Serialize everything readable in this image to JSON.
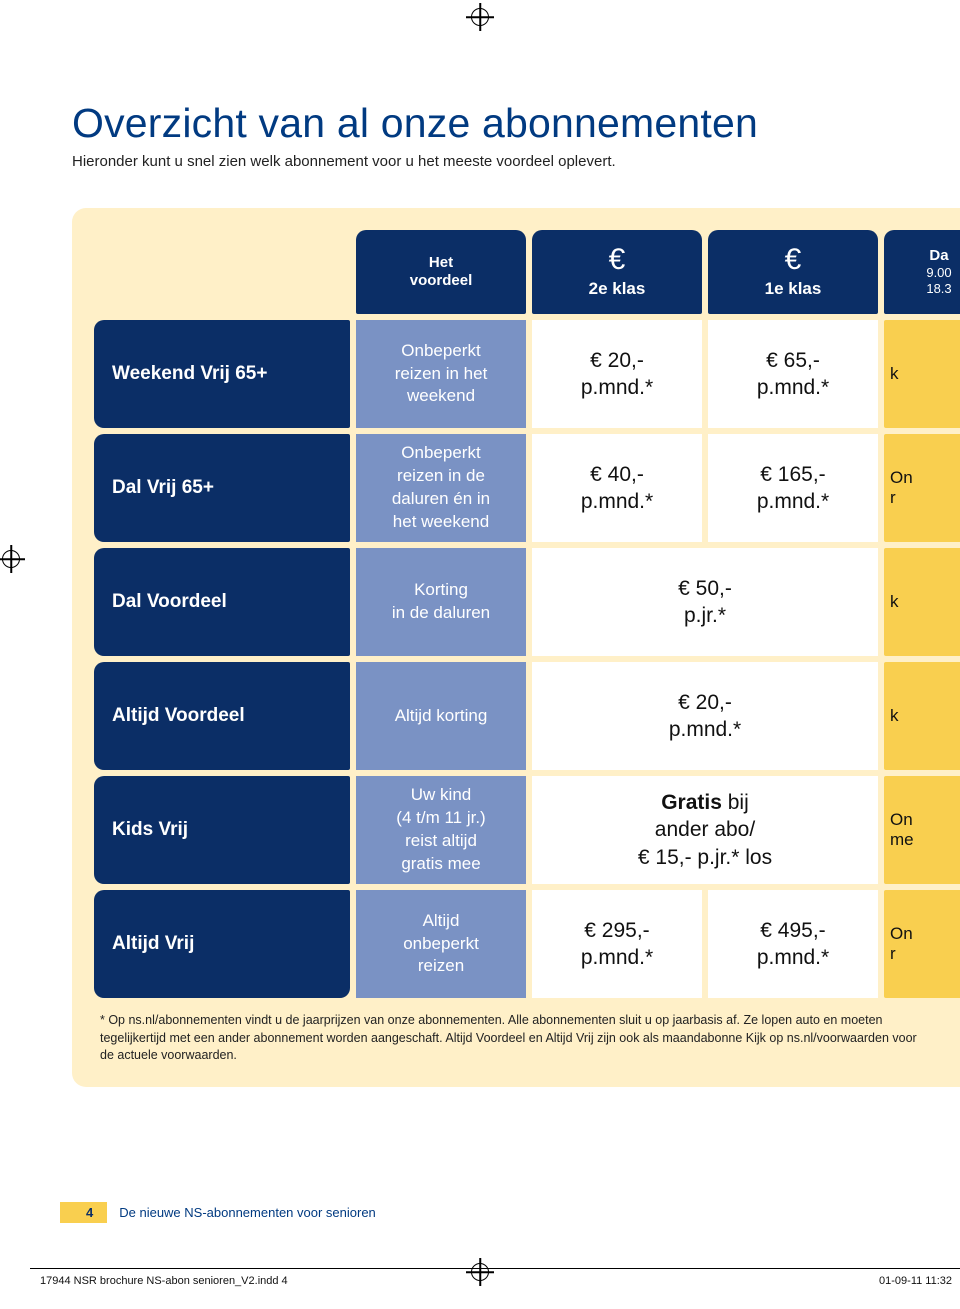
{
  "colors": {
    "heading": "#013a81",
    "navy": "#0b2e66",
    "blue_light": "#7a92c4",
    "yellow_bg": "#fff0c8",
    "yellow_edge": "#f9cf4f",
    "text": "#222222",
    "white": "#ffffff"
  },
  "title": "Overzicht van al onze abonnementen",
  "subtitle": "Hieronder kunt u snel zien welk abonnement voor u het meeste voordeel oplevert.",
  "header": {
    "col1": "Het\nvoordeel",
    "col2_euro": "€",
    "col2_sub": "2e klas",
    "col3_euro": "€",
    "col3_sub": "1e klas",
    "col4_top": "Da",
    "col4_sub": "9.00\n18.3"
  },
  "rows": [
    {
      "name": "Weekend Vrij 65+",
      "benefit": "Onbeperkt\nreizen in het\nweekend",
      "c2": "€ 20,-\np.mnd.*",
      "c3": "€ 65,-\np.mnd.*",
      "edge": "k"
    },
    {
      "name": "Dal Vrij 65+",
      "benefit": "Onbeperkt\nreizen in de\ndaluren én in\nhet weekend",
      "c2": "€ 40,-\np.mnd.*",
      "c3": "€ 165,-\np.mnd.*",
      "edge": "On\nr"
    },
    {
      "name": "Dal Voordeel",
      "benefit": "Korting\nin de daluren",
      "merged": "€ 50,-\np.jr.*",
      "edge": "k"
    },
    {
      "name": "Altijd Voordeel",
      "benefit": "Altijd korting",
      "merged": "€ 20,-\np.mnd.*",
      "edge": "k"
    },
    {
      "name": "Kids Vrij",
      "benefit": "Uw kind\n(4 t/m 11 jr.)\nreist altijd\ngratis mee",
      "merged_html": true,
      "merged": "Gratis bij\nander abo/\n€ 15,- p.jr.* los",
      "edge": "On\nme"
    },
    {
      "name": "Altijd Vrij",
      "benefit": "Altijd\nonbeperkt\nreizen",
      "c2": "€ 295,-\np.mnd.*",
      "c3": "€ 495,-\np.mnd.*",
      "edge": "On\nr"
    }
  ],
  "footnote": "* Op ns.nl/abonnementen vindt u de jaarprijzen van onze abonnementen. Alle abonnementen sluit u op jaarbasis af. Ze lopen auto\nen moeten tegelijkertijd met een ander abonnement worden aangeschaft. Altijd Voordeel en Altijd Vrij zijn ook als maandabonne\nKijk op ns.nl/voorwaarden voor de actuele voorwaarden.",
  "pagenum": "4",
  "pagetext": "De nieuwe NS-abonnementen voor senioren",
  "slug": "17944 NSR brochure NS-abon senioren_V2.indd   4",
  "slugdate": "01-09-11   11:32"
}
